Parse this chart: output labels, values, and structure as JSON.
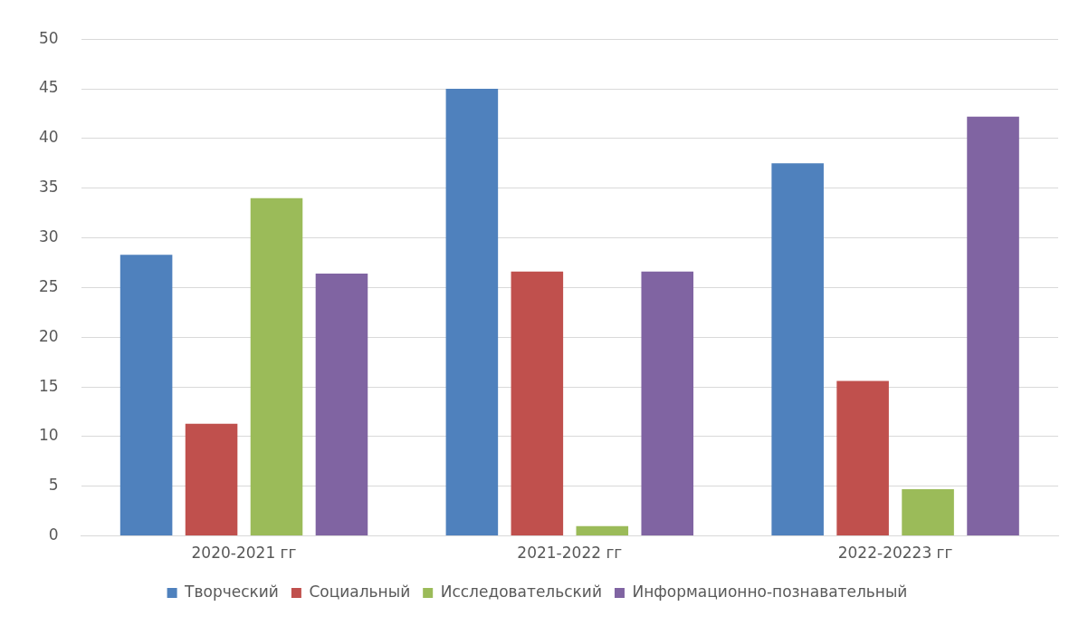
{
  "chart_data": {
    "type": "bar",
    "categories": [
      "2020-2021 гг",
      "2021-2022 гг",
      "2022-20223 гг"
    ],
    "series": [
      {
        "name": "Творческий",
        "color": "#4f81bd",
        "values": [
          28.3,
          45,
          37.5
        ]
      },
      {
        "name": "Социальный",
        "color": "#c0504d",
        "values": [
          11.3,
          26.6,
          15.6
        ]
      },
      {
        "name": "Исследовательский",
        "color": "#9bbb59",
        "values": [
          34,
          1,
          4.7
        ]
      },
      {
        "name": "Информационно-познавательный",
        "color": "#8064a2",
        "values": [
          26.4,
          26.6,
          42.2
        ]
      }
    ],
    "ylim": [
      0,
      50
    ],
    "yticks": [
      0,
      5,
      10,
      15,
      20,
      25,
      30,
      35,
      40,
      45,
      50
    ],
    "grid": "y",
    "legend": "bottom"
  }
}
